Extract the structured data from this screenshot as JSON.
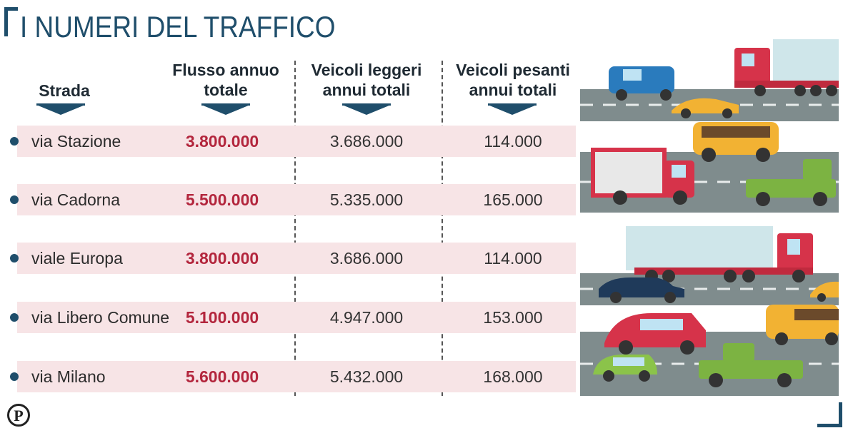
{
  "title": "I NUMERI DEL TRAFFICO",
  "headers": {
    "street": "Strada",
    "total_line1": "Flusso annuo",
    "total_line2": "totale",
    "light_line1": "Veicoli leggeri",
    "light_line2": "annui totali",
    "heavy_line1": "Veicoli pesanti",
    "heavy_line2": "annui totali"
  },
  "rows": [
    {
      "street": "via Stazione",
      "total": "3.800.000",
      "light": "3.686.000",
      "heavy": "114.000"
    },
    {
      "street": "via Cadorna",
      "total": "5.500.000",
      "light": "5.335.000",
      "heavy": "165.000"
    },
    {
      "street": "viale Europa",
      "total": "3.800.000",
      "light": "3.686.000",
      "heavy": "114.000"
    },
    {
      "street": "via Libero Comune",
      "total": "5.100.000",
      "light": "4.947.000",
      "heavy": "153.000"
    },
    {
      "street": "via Milano",
      "total": "5.600.000",
      "light": "5.432.000",
      "heavy": "168.000"
    }
  ],
  "logo": "P",
  "colors": {
    "accent": "#1f4e6b",
    "highlight": "#b3263d",
    "row_bg": "#f7e4e6"
  }
}
